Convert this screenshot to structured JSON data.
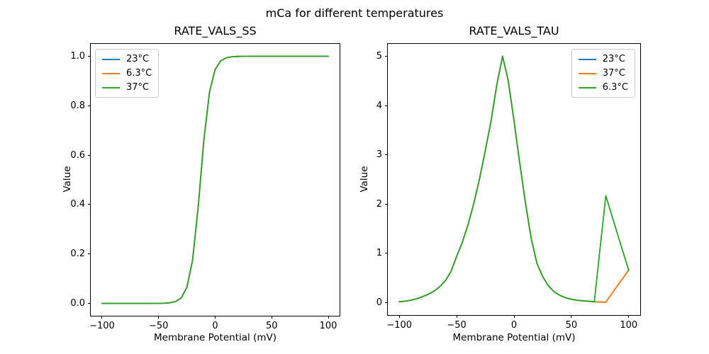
{
  "figure": {
    "title": "mCa for different temperatures",
    "background": "#ffffff",
    "text_color": "#000000"
  },
  "palette": {
    "series_blue": "#1f77b4",
    "series_orange": "#ff7f0e",
    "series_green": "#2ca02c",
    "legend_border": "#cccccc"
  },
  "chart_data": [
    {
      "type": "line",
      "title": "RATE_VALS_SS",
      "xlabel": "Membrane Potential (mV)",
      "ylabel": "Value",
      "xlim": [
        -110,
        110
      ],
      "ylim": [
        -0.05,
        1.05
      ],
      "xticks": [
        -100,
        -50,
        0,
        50,
        100
      ],
      "xtick_labels": [
        "−100",
        "−50",
        "0",
        "50",
        "100"
      ],
      "yticks": [
        0.0,
        0.2,
        0.4,
        0.6,
        0.8,
        1.0
      ],
      "ytick_labels": [
        "0.0",
        "0.2",
        "0.4",
        "0.6",
        "0.8",
        "1.0"
      ],
      "grid": false,
      "legend": {
        "loc": "upper left",
        "entries": [
          {
            "label": "23°C",
            "color": "#1f77b4"
          },
          {
            "label": "6.3°C",
            "color": "#ff7f0e"
          },
          {
            "label": "37°C",
            "color": "#2ca02c"
          }
        ]
      },
      "x": [
        -100,
        -95,
        -90,
        -85,
        -80,
        -75,
        -70,
        -65,
        -60,
        -55,
        -50,
        -45,
        -40,
        -35,
        -30,
        -25,
        -20,
        -15,
        -10,
        -5,
        0,
        5,
        10,
        15,
        20,
        25,
        30,
        35,
        40,
        45,
        50,
        55,
        60,
        65,
        70,
        75,
        80,
        85,
        90,
        95,
        100
      ],
      "series": [
        {
          "name": "23°C",
          "color": "#1f77b4",
          "values": [
            0,
            0,
            0,
            0,
            0,
            0,
            0,
            0,
            0,
            0.0001,
            0.0003,
            0.0008,
            0.0025,
            0.0075,
            0.0224,
            0.0652,
            0.1743,
            0.3906,
            0.661,
            0.8554,
            0.9473,
            0.982,
            0.994,
            0.998,
            0.9993,
            0.9998,
            0.9999,
            1,
            1,
            1,
            1,
            1,
            1,
            1,
            1,
            1,
            1,
            1,
            1,
            1,
            1
          ]
        },
        {
          "name": "6.3°C",
          "color": "#ff7f0e",
          "values": [
            0,
            0,
            0,
            0,
            0,
            0,
            0,
            0,
            0,
            0.0001,
            0.0003,
            0.0008,
            0.0025,
            0.0075,
            0.0224,
            0.0652,
            0.1743,
            0.3906,
            0.661,
            0.8554,
            0.9473,
            0.982,
            0.994,
            0.998,
            0.9993,
            0.9998,
            0.9999,
            1,
            1,
            1,
            1,
            1,
            1,
            1,
            1,
            1,
            1,
            1,
            1,
            1,
            1
          ]
        },
        {
          "name": "37°C",
          "color": "#2ca02c",
          "values": [
            0,
            0,
            0,
            0,
            0,
            0,
            0,
            0,
            0,
            0.0001,
            0.0003,
            0.0008,
            0.0025,
            0.0075,
            0.0224,
            0.0652,
            0.1743,
            0.3906,
            0.661,
            0.8554,
            0.9473,
            0.982,
            0.994,
            0.998,
            0.9993,
            0.9998,
            0.9999,
            1,
            1,
            1,
            1,
            1,
            1,
            1,
            1,
            1,
            1,
            1,
            1,
            1,
            1
          ]
        }
      ]
    },
    {
      "type": "line",
      "title": "RATE_VALS_TAU",
      "xlabel": "Membrane Potential (mV)",
      "ylabel": "Value",
      "xlim": [
        -110,
        110
      ],
      "ylim": [
        -0.25,
        5.25
      ],
      "xticks": [
        -100,
        -50,
        0,
        50,
        100
      ],
      "xtick_labels": [
        "−100",
        "−50",
        "0",
        "50",
        "100"
      ],
      "yticks": [
        0,
        1,
        2,
        3,
        4,
        5
      ],
      "ytick_labels": [
        "0",
        "1",
        "2",
        "3",
        "4",
        "5"
      ],
      "grid": false,
      "legend": {
        "loc": "upper right",
        "entries": [
          {
            "label": "23°C",
            "color": "#1f77b4"
          },
          {
            "label": "37°C",
            "color": "#ff7f0e"
          },
          {
            "label": "6.3°C",
            "color": "#2ca02c"
          }
        ]
      },
      "x": [
        -100,
        -95,
        -90,
        -85,
        -80,
        -75,
        -70,
        -65,
        -60,
        -55,
        -50,
        -45,
        -40,
        -35,
        -30,
        -25,
        -20,
        -15,
        -10,
        -5,
        0,
        5,
        10,
        15,
        20,
        25,
        30,
        35,
        40,
        45,
        50,
        55,
        60,
        65,
        70,
        75,
        80,
        85,
        90,
        95,
        100
      ],
      "series": [
        {
          "name": "23°C",
          "color": "#1f77b4",
          "values": [
            0.02,
            0.03,
            0.05,
            0.08,
            0.12,
            0.17,
            0.23,
            0.32,
            0.44,
            0.63,
            0.94,
            1.23,
            1.59,
            2.02,
            2.52,
            3.09,
            3.69,
            4.42,
            5.0,
            4.5,
            3.69,
            2.83,
            2.02,
            1.3,
            0.8,
            0.53,
            0.34,
            0.22,
            0.15,
            0.1,
            0.07,
            0.05,
            0.04,
            0.03,
            0.02,
            0.015,
            0.01,
            0.175,
            0.34,
            0.5,
            0.67
          ]
        },
        {
          "name": "37°C",
          "color": "#ff7f0e",
          "values": [
            0.02,
            0.03,
            0.05,
            0.08,
            0.12,
            0.17,
            0.23,
            0.32,
            0.44,
            0.63,
            0.94,
            1.23,
            1.59,
            2.02,
            2.52,
            3.09,
            3.69,
            4.42,
            5.0,
            4.5,
            3.69,
            2.83,
            2.02,
            1.3,
            0.8,
            0.53,
            0.34,
            0.22,
            0.15,
            0.1,
            0.07,
            0.05,
            0.04,
            0.03,
            0.02,
            0.015,
            0.01,
            0.175,
            0.34,
            0.5,
            0.67
          ]
        },
        {
          "name": "6.3°C",
          "color": "#2ca02c",
          "values": [
            0.02,
            0.03,
            0.05,
            0.08,
            0.12,
            0.17,
            0.23,
            0.32,
            0.44,
            0.63,
            0.94,
            1.23,
            1.59,
            2.02,
            2.52,
            3.09,
            3.69,
            4.42,
            5.0,
            4.5,
            3.69,
            2.83,
            2.02,
            1.3,
            0.8,
            0.53,
            0.34,
            0.22,
            0.15,
            0.1,
            0.07,
            0.05,
            0.04,
            0.03,
            0.02,
            1.1,
            2.17,
            1.79,
            1.41,
            1.03,
            0.655
          ]
        }
      ]
    }
  ]
}
